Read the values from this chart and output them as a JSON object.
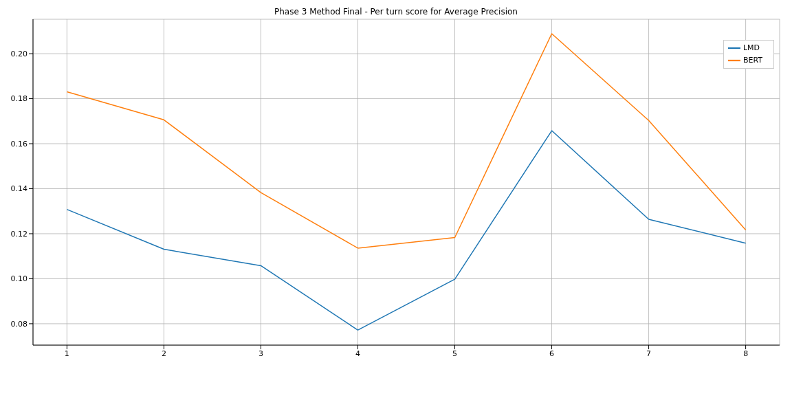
{
  "chart_data": {
    "type": "line",
    "title": "Phase 3 Method Final - Per turn score for Average Precision",
    "x": [
      1,
      2,
      3,
      4,
      5,
      6,
      7,
      8
    ],
    "series": [
      {
        "name": "LMD",
        "color": "#1f77b4",
        "values": [
          0.1308,
          0.1131,
          0.1058,
          0.0772,
          0.0998,
          0.1658,
          0.1264,
          0.1158
        ]
      },
      {
        "name": "BERT",
        "color": "#ff7f0e",
        "values": [
          0.1831,
          0.1706,
          0.1383,
          0.1136,
          0.1183,
          0.2089,
          0.1703,
          0.1217
        ]
      }
    ],
    "xlim": [
      0.65,
      8.35
    ],
    "xticks": [
      1,
      2,
      3,
      4,
      5,
      6,
      7,
      8
    ],
    "ylim": [
      0.0705,
      0.2153
    ],
    "yticks": [
      0.08,
      {
        "value": 0.1,
        "label": "0.10"
      },
      0.12,
      0.14,
      0.16,
      0.18,
      {
        "value": 0.2,
        "label": "0.20"
      }
    ],
    "grid": true,
    "legend": "top right",
    "marker": "none",
    "line_style": "solid"
  }
}
